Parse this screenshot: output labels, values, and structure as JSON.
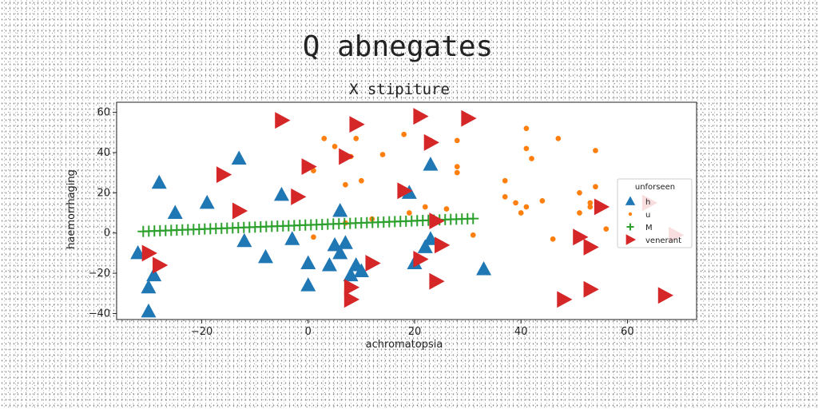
{
  "chart_data": {
    "type": "scatter",
    "title": "Q abnegates",
    "subtitle": "X stipiture",
    "xlabel": "achromatopsia",
    "ylabel": "haemorrhaging",
    "xlim": [
      -36,
      73
    ],
    "ylim": [
      -43,
      65
    ],
    "x_ticks": [
      -20,
      0,
      20,
      40,
      60
    ],
    "y_ticks": [
      -40,
      -20,
      0,
      20,
      40,
      60
    ],
    "grid": false,
    "legend": {
      "title": "unforseen",
      "position": "right"
    },
    "series": [
      {
        "name": "h",
        "marker": "triangle-up",
        "color": "#1f77b4",
        "points": [
          [
            -28,
            25
          ],
          [
            -13,
            37
          ],
          [
            -19,
            15
          ],
          [
            -25,
            10
          ],
          [
            -5,
            19
          ],
          [
            -12,
            -4
          ],
          [
            -29,
            -21
          ],
          [
            -30,
            -27
          ],
          [
            -30,
            -39
          ],
          [
            -8,
            -12
          ],
          [
            -3,
            -3
          ],
          [
            0,
            -15
          ],
          [
            0,
            -26
          ],
          [
            4,
            -16
          ],
          [
            5,
            -6
          ],
          [
            6,
            -10
          ],
          [
            7,
            -5
          ],
          [
            6,
            11
          ],
          [
            8,
            -21
          ],
          [
            9,
            -16
          ],
          [
            10,
            -19
          ],
          [
            19,
            20
          ],
          [
            20,
            -15
          ],
          [
            22,
            -7
          ],
          [
            23,
            34
          ],
          [
            23,
            -3
          ],
          [
            33,
            -18
          ],
          [
            -32,
            -10
          ]
        ]
      },
      {
        "name": "u",
        "marker": "circle",
        "color": "#ff7f0e",
        "points": [
          [
            3,
            47
          ],
          [
            5,
            43
          ],
          [
            8,
            38
          ],
          [
            9,
            47
          ],
          [
            14,
            39
          ],
          [
            18,
            49
          ],
          [
            23,
            46
          ],
          [
            28,
            46
          ],
          [
            28,
            33
          ],
          [
            28,
            30
          ],
          [
            1,
            31
          ],
          [
            7,
            24
          ],
          [
            10,
            26
          ],
          [
            22,
            13
          ],
          [
            26,
            12
          ],
          [
            31,
            -1
          ],
          [
            37,
            26
          ],
          [
            37,
            18
          ],
          [
            39,
            15
          ],
          [
            40,
            10
          ],
          [
            41,
            13
          ],
          [
            44,
            16
          ],
          [
            41,
            52
          ],
          [
            41,
            42
          ],
          [
            42,
            37
          ],
          [
            47,
            47
          ],
          [
            46,
            -3
          ],
          [
            51,
            20
          ],
          [
            51,
            10
          ],
          [
            53,
            15
          ],
          [
            54,
            41
          ],
          [
            54,
            23
          ],
          [
            56,
            2
          ],
          [
            53,
            13
          ],
          [
            1,
            -2
          ],
          [
            7,
            5
          ],
          [
            19,
            10
          ],
          [
            12,
            7
          ]
        ]
      },
      {
        "name": "M",
        "marker": "plus",
        "color": "#2ca02c",
        "fit": {
          "x_start": -31,
          "x_end": 31,
          "y_start": 0.8,
          "y_end": 7.2,
          "count": 60
        }
      },
      {
        "name": "venerant",
        "marker": "triangle-right",
        "color": "#d62728",
        "points": [
          [
            -5,
            56
          ],
          [
            9,
            54
          ],
          [
            21,
            58
          ],
          [
            30,
            57
          ],
          [
            7,
            38
          ],
          [
            23,
            45
          ],
          [
            -16,
            29
          ],
          [
            0,
            33
          ],
          [
            -13,
            11
          ],
          [
            -2,
            18
          ],
          [
            18,
            21
          ],
          [
            24,
            6
          ],
          [
            -30,
            -10
          ],
          [
            -28,
            -16
          ],
          [
            12,
            -15
          ],
          [
            21,
            -13
          ],
          [
            25,
            -6
          ],
          [
            24,
            -24
          ],
          [
            8,
            -27
          ],
          [
            8,
            -33
          ],
          [
            48,
            -33
          ],
          [
            53,
            -28
          ],
          [
            51,
            -2
          ],
          [
            53,
            -7
          ],
          [
            55,
            13
          ],
          [
            67,
            -31
          ],
          [
            69,
            -1
          ],
          [
            64,
            15
          ]
        ]
      }
    ]
  }
}
